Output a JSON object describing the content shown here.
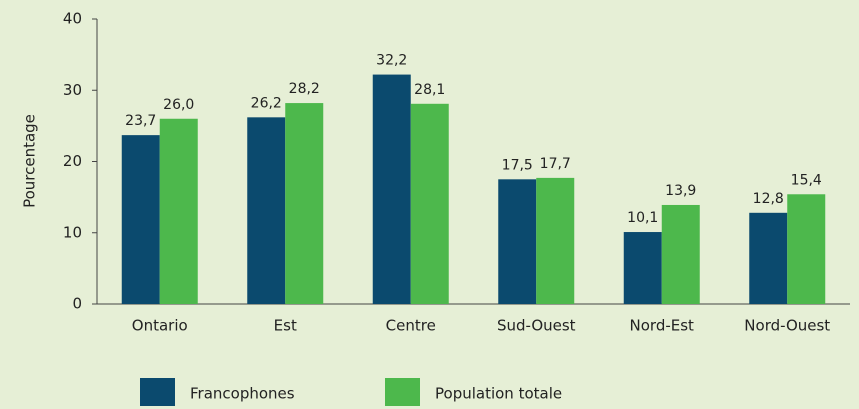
{
  "chart_data": {
    "type": "bar",
    "y_label": "Pourcentage",
    "categories": [
      "Ontario",
      "Est",
      "Centre",
      "Sud-Ouest",
      "Nord-Est",
      "Nord-Ouest"
    ],
    "series": [
      {
        "name": "Francophones",
        "color": "#0b4a6e",
        "values": [
          23.7,
          26.2,
          32.2,
          17.5,
          10.1,
          12.8
        ],
        "value_labels": [
          "23,7",
          "26,2",
          "32,2",
          "17,5",
          "10,1",
          "12,8"
        ]
      },
      {
        "name": "Population totale",
        "color": "#4db84c",
        "values": [
          26.0,
          28.2,
          28.1,
          17.7,
          13.9,
          15.4
        ],
        "value_labels": [
          "26,0",
          "28,2",
          "28,1",
          "17,7",
          "13,9",
          "15,4"
        ]
      }
    ],
    "ylim": [
      0,
      40
    ],
    "yticks": [
      0,
      10,
      20,
      30,
      40
    ]
  }
}
